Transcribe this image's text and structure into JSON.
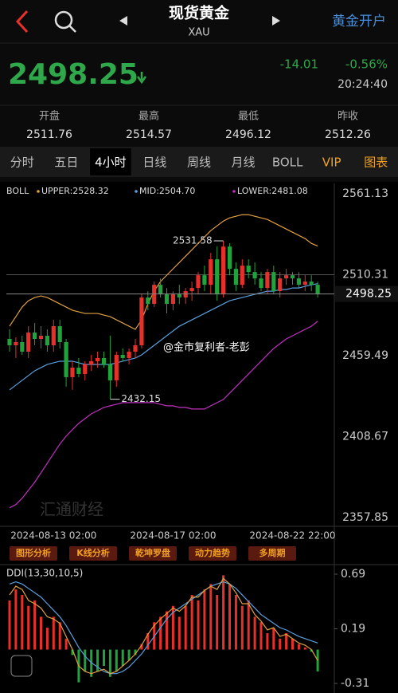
{
  "header": {
    "title": "现货黄金",
    "subtitle": "XAU",
    "action": "黄金开户"
  },
  "quote": {
    "price": "2498.25",
    "change": "-14.01",
    "change_pct": "-0.56%",
    "time": "20:24:40"
  },
  "stats": [
    {
      "label": "开盘",
      "value": "2511.76"
    },
    {
      "label": "最高",
      "value": "2514.57"
    },
    {
      "label": "最低",
      "value": "2496.12"
    },
    {
      "label": "昨收",
      "value": "2512.26"
    }
  ],
  "tabs": [
    "分时",
    "五日",
    "4小时",
    "日线",
    "周线",
    "月线",
    "BOLL",
    "VIP",
    "图表"
  ],
  "chart_data": {
    "type": "candlestick",
    "indicator_name": "BOLL",
    "categories": [
      null,
      null,
      null,
      null,
      null,
      null,
      null,
      "2024-08-13 02:00",
      null,
      null,
      null,
      null,
      null,
      null,
      null,
      null,
      null,
      null,
      null,
      null,
      null,
      null,
      null,
      null,
      null,
      null,
      "2024-08-17 02:00",
      null,
      null,
      null,
      null,
      null,
      null,
      null,
      null,
      null,
      null,
      null,
      null,
      null,
      null,
      null,
      null,
      null,
      null,
      "2024-08-22 22:00",
      null,
      null,
      null,
      null
    ],
    "open": [
      2470,
      2466,
      2468,
      2462,
      2474,
      2470,
      2472,
      2466,
      2478,
      2468,
      2446,
      2452,
      2448,
      2454,
      2456,
      2458,
      2454,
      2444,
      2460,
      2458,
      2462,
      2466,
      2496,
      2492,
      2504,
      2498,
      2492,
      2498,
      2496,
      2500,
      2502,
      2510,
      2504,
      2520,
      2498,
      2528,
      2514,
      2504,
      2516,
      2512,
      2508,
      2502,
      2512,
      2500,
      2508,
      2510,
      2508,
      2504,
      2506,
      2504
    ],
    "high": [
      2476,
      2471,
      2472,
      2478,
      2480,
      2478,
      2476,
      2482,
      2482,
      2470,
      2456,
      2458,
      2456,
      2460,
      2462,
      2462,
      2472,
      2462,
      2464,
      2464,
      2470,
      2498,
      2500,
      2506,
      2508,
      2502,
      2500,
      2504,
      2502,
      2506,
      2512,
      2516,
      2524,
      2528,
      2531.58,
      2530,
      2518,
      2520,
      2520,
      2518,
      2512,
      2514,
      2516,
      2512,
      2514,
      2512,
      2512,
      2510,
      2510,
      2506
    ],
    "low": [
      2462,
      2458,
      2460,
      2458,
      2466,
      2464,
      2462,
      2462,
      2464,
      2440,
      2438,
      2446,
      2444,
      2450,
      2452,
      2452,
      2432.15,
      2440,
      2456,
      2454,
      2458,
      2464,
      2488,
      2490,
      2496,
      2486,
      2488,
      2492,
      2492,
      2494,
      2498,
      2500,
      2498,
      2494,
      2496,
      2510,
      2500,
      2502,
      2508,
      2504,
      2500,
      2498,
      2498,
      2496,
      2504,
      2504,
      2502,
      2500,
      2500,
      2496
    ],
    "close": [
      2466,
      2468,
      2462,
      2474,
      2470,
      2472,
      2466,
      2478,
      2468,
      2446,
      2452,
      2448,
      2454,
      2456,
      2458,
      2454,
      2444,
      2460,
      2458,
      2462,
      2466,
      2496,
      2492,
      2504,
      2498,
      2492,
      2498,
      2496,
      2500,
      2502,
      2510,
      2504,
      2520,
      2498,
      2528,
      2514,
      2504,
      2516,
      2512,
      2508,
      2502,
      2512,
      2500,
      2508,
      2510,
      2508,
      2504,
      2506,
      2504,
      2498.25
    ],
    "up_color": "#e8302a",
    "down_color": "#1fa33a",
    "ylim": [
      2357.85,
      2561.13
    ],
    "yticks": [
      2561.13,
      2510.31,
      2459.49,
      2408.67,
      2357.85
    ],
    "overlays": [
      {
        "label": "UPPER:2528.32",
        "color": "#e0a040",
        "values": [
          2478,
          2484,
          2490,
          2494,
          2496,
          2497,
          2496,
          2494,
          2492,
          2490,
          2488,
          2487,
          2486,
          2486,
          2486,
          2485,
          2484,
          2482,
          2480,
          2478,
          2476,
          2482,
          2492,
          2500,
          2506,
          2510,
          2514,
          2518,
          2522,
          2526,
          2530,
          2534,
          2538,
          2541,
          2544,
          2546,
          2547,
          2548,
          2548,
          2547,
          2546,
          2545,
          2543,
          2541,
          2539,
          2537,
          2535,
          2533,
          2530,
          2528.32
        ]
      },
      {
        "label": "MID:2504.70",
        "color": "#5aa0e0",
        "values": [
          2438,
          2441,
          2444,
          2447,
          2450,
          2452,
          2454,
          2455,
          2456,
          2456,
          2456,
          2455,
          2454,
          2454,
          2454,
          2454,
          2454,
          2455,
          2456,
          2457,
          2458,
          2460,
          2463,
          2466,
          2469,
          2472,
          2475,
          2478,
          2480,
          2482,
          2484,
          2486,
          2488,
          2490,
          2492,
          2494,
          2495,
          2496,
          2497,
          2498,
          2499,
          2500,
          2500,
          2501,
          2501,
          2502,
          2502,
          2503,
          2504,
          2504.7
        ]
      },
      {
        "label": "LOWER:2481.08",
        "color": "#c030c0",
        "values": [
          2364,
          2366,
          2370,
          2375,
          2380,
          2386,
          2392,
          2398,
          2404,
          2409,
          2413,
          2417,
          2420,
          2423,
          2425,
          2427,
          2428,
          2429,
          2430,
          2430,
          2430,
          2430,
          2430,
          2430,
          2429,
          2428,
          2428,
          2427,
          2427,
          2426,
          2426,
          2426,
          2428,
          2430,
          2432,
          2436,
          2440,
          2444,
          2448,
          2452,
          2456,
          2460,
          2464,
          2467,
          2470,
          2472,
          2474,
          2476,
          2478,
          2481.08
        ]
      }
    ],
    "watermarks": [
      "汇通财经",
      "@金市复利者-老彭"
    ]
  },
  "tools": [
    "图形分析",
    "K线分析",
    "乾坤罗盘",
    "动力趋势",
    "多周期"
  ],
  "indicator": {
    "type": "bar",
    "title": "DDI(13,30,10,5)",
    "ylim": [
      -0.31,
      0.69
    ],
    "yticks": [
      0.69,
      0.19,
      -0.31
    ],
    "up_color": "#e8302a",
    "down_color": "#1fa33a",
    "values": [
      0.45,
      0.55,
      0.5,
      0.4,
      0.45,
      0.3,
      0.2,
      0.3,
      0.25,
      0.1,
      -0.05,
      -0.3,
      -0.2,
      -0.25,
      -0.2,
      -0.15,
      -0.25,
      -0.2,
      -0.15,
      -0.1,
      -0.05,
      0.05,
      0.15,
      0.25,
      0.3,
      0.35,
      0.4,
      0.3,
      0.4,
      0.5,
      0.45,
      0.55,
      0.6,
      0.5,
      0.68,
      0.6,
      0.5,
      0.4,
      0.45,
      0.3,
      0.25,
      0.15,
      0.2,
      0.1,
      0.15,
      0.1,
      0.05,
      0.02,
      -0.02,
      -0.2
    ],
    "lines": [
      {
        "color": "#5aa0e0",
        "values": [
          0.6,
          0.62,
          0.6,
          0.56,
          0.52,
          0.48,
          0.42,
          0.36,
          0.3,
          0.22,
          0.12,
          0.02,
          -0.06,
          -0.12,
          -0.16,
          -0.2,
          -0.22,
          -0.22,
          -0.2,
          -0.16,
          -0.1,
          -0.04,
          0.04,
          0.12,
          0.2,
          0.28,
          0.34,
          0.38,
          0.42,
          0.46,
          0.5,
          0.54,
          0.58,
          0.6,
          0.62,
          0.6,
          0.56,
          0.5,
          0.44,
          0.38,
          0.32,
          0.28,
          0.24,
          0.2,
          0.18,
          0.15,
          0.12,
          0.1,
          0.08,
          0.06
        ]
      },
      {
        "color": "#e0a040",
        "values": [
          0.5,
          0.58,
          0.55,
          0.45,
          0.42,
          0.38,
          0.3,
          0.28,
          0.24,
          0.12,
          0.0,
          -0.15,
          -0.2,
          -0.22,
          -0.2,
          -0.18,
          -0.22,
          -0.2,
          -0.15,
          -0.1,
          -0.04,
          0.04,
          0.14,
          0.22,
          0.28,
          0.33,
          0.38,
          0.35,
          0.4,
          0.48,
          0.48,
          0.54,
          0.58,
          0.55,
          0.65,
          0.6,
          0.52,
          0.42,
          0.42,
          0.32,
          0.26,
          0.18,
          0.2,
          0.12,
          0.14,
          0.1,
          0.06,
          0.04,
          0.0,
          -0.1
        ]
      }
    ]
  }
}
